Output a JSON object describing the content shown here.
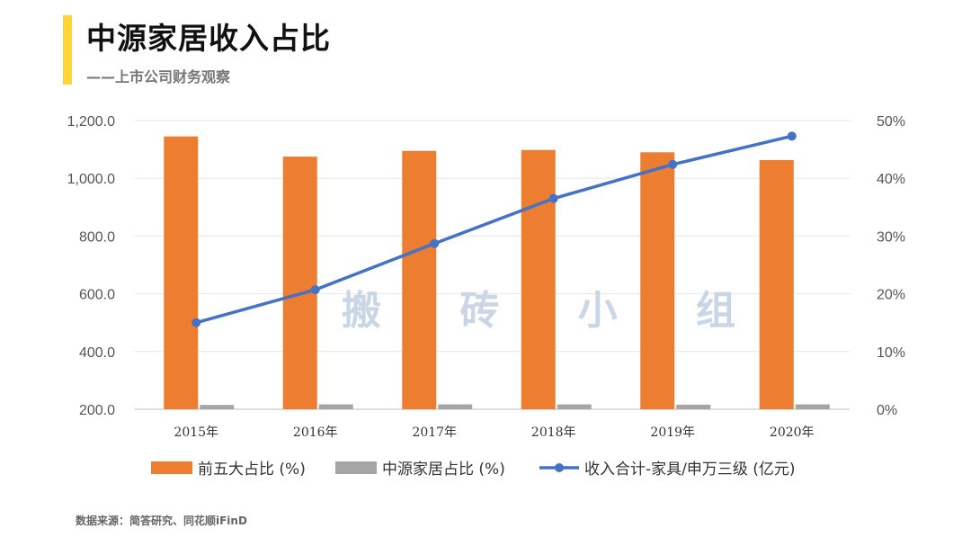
{
  "header": {
    "title": "中源家居收入占比",
    "subtitle": "——上市公司财务观察"
  },
  "watermark": "搬 砖 小 组",
  "footer": {
    "source": "数据来源：简答研究、同花顺iFinD"
  },
  "colors": {
    "accent": "#ffd43b",
    "series_top5": "#ed7d31",
    "series_company": "#a5a5a5",
    "series_revenue": "#4472c4"
  },
  "chart_data": {
    "type": "bar+line",
    "categories": [
      "2015年",
      "2016年",
      "2017年",
      "2018年",
      "2019年",
      "2020年"
    ],
    "series": [
      {
        "name": "前五大占比 (%)",
        "kind": "bar",
        "axis": "left",
        "values": [
          1145,
          1075,
          1095,
          1098,
          1090,
          1063
        ]
      },
      {
        "name": "中源家居占比 (%)",
        "kind": "bar",
        "axis": "left",
        "values": [
          215,
          217,
          217,
          217,
          216,
          217
        ]
      },
      {
        "name": "收入合计-家具/申万三级 (亿元)",
        "kind": "line",
        "axis": "right",
        "values": [
          15.0,
          20.7,
          28.7,
          36.5,
          42.4,
          47.3
        ]
      }
    ],
    "y_left": {
      "min": 200,
      "max": 1200,
      "ticks": [
        "200.0",
        "400.0",
        "600.0",
        "800.0",
        "1,000.0",
        "1,200.0"
      ]
    },
    "y_right": {
      "min": 0,
      "max": 50,
      "ticks": [
        "0%",
        "10%",
        "20%",
        "30%",
        "40%",
        "50%"
      ]
    },
    "legend_position": "bottom"
  }
}
